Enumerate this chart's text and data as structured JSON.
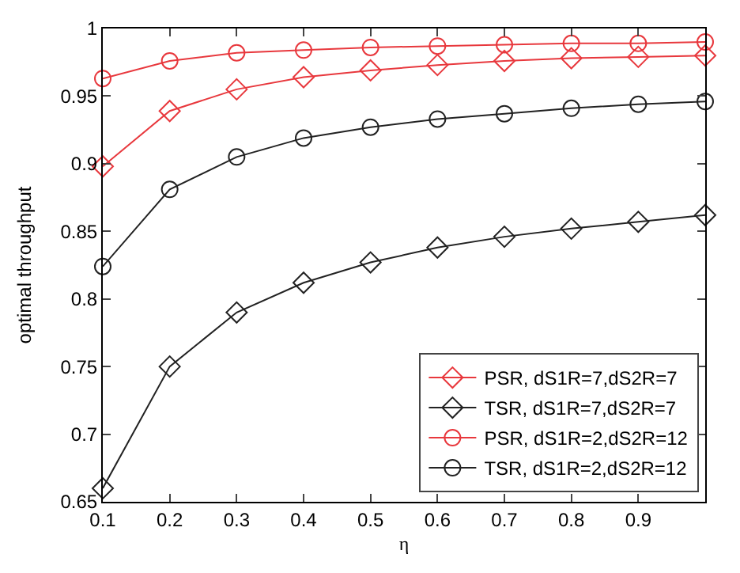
{
  "chart_data": {
    "type": "line",
    "xlabel": "η",
    "ylabel": "optimal throughput",
    "x": [
      0.1,
      0.2,
      0.3,
      0.4,
      0.5,
      0.6,
      0.7,
      0.8,
      0.9,
      1.0
    ],
    "series": [
      {
        "name": "PSR, dS1R=7,dS2R=7",
        "color": "#e8383d",
        "marker": "diamond",
        "values": [
          0.898,
          0.939,
          0.955,
          0.964,
          0.969,
          0.973,
          0.976,
          0.978,
          0.979,
          0.98
        ]
      },
      {
        "name": "TSR, dS1R=7,dS2R=7",
        "color": "#222222",
        "marker": "diamond",
        "values": [
          0.66,
          0.75,
          0.79,
          0.812,
          0.827,
          0.838,
          0.846,
          0.852,
          0.857,
          0.862
        ]
      },
      {
        "name": "PSR, dS1R=2,dS2R=12",
        "color": "#e8383d",
        "marker": "circle",
        "values": [
          0.963,
          0.976,
          0.982,
          0.984,
          0.986,
          0.987,
          0.988,
          0.989,
          0.989,
          0.99
        ]
      },
      {
        "name": "TSR, dS1R=2,dS2R=12",
        "color": "#222222",
        "marker": "circle",
        "values": [
          0.824,
          0.881,
          0.905,
          0.919,
          0.927,
          0.933,
          0.937,
          0.941,
          0.944,
          0.946
        ]
      }
    ],
    "xlim": [
      0.1,
      1.0
    ],
    "ylim": [
      0.65,
      1.0
    ],
    "xticks": [
      0.1,
      0.2,
      0.3,
      0.4,
      0.5,
      0.6,
      0.7,
      0.8,
      0.9,
      {
        "value": 1.0,
        "label": null
      }
    ],
    "yticks": [
      0.65,
      0.7,
      0.75,
      0.8,
      0.85,
      0.9,
      0.95,
      1
    ],
    "legend": "bottom right",
    "line_style": "solid"
  }
}
